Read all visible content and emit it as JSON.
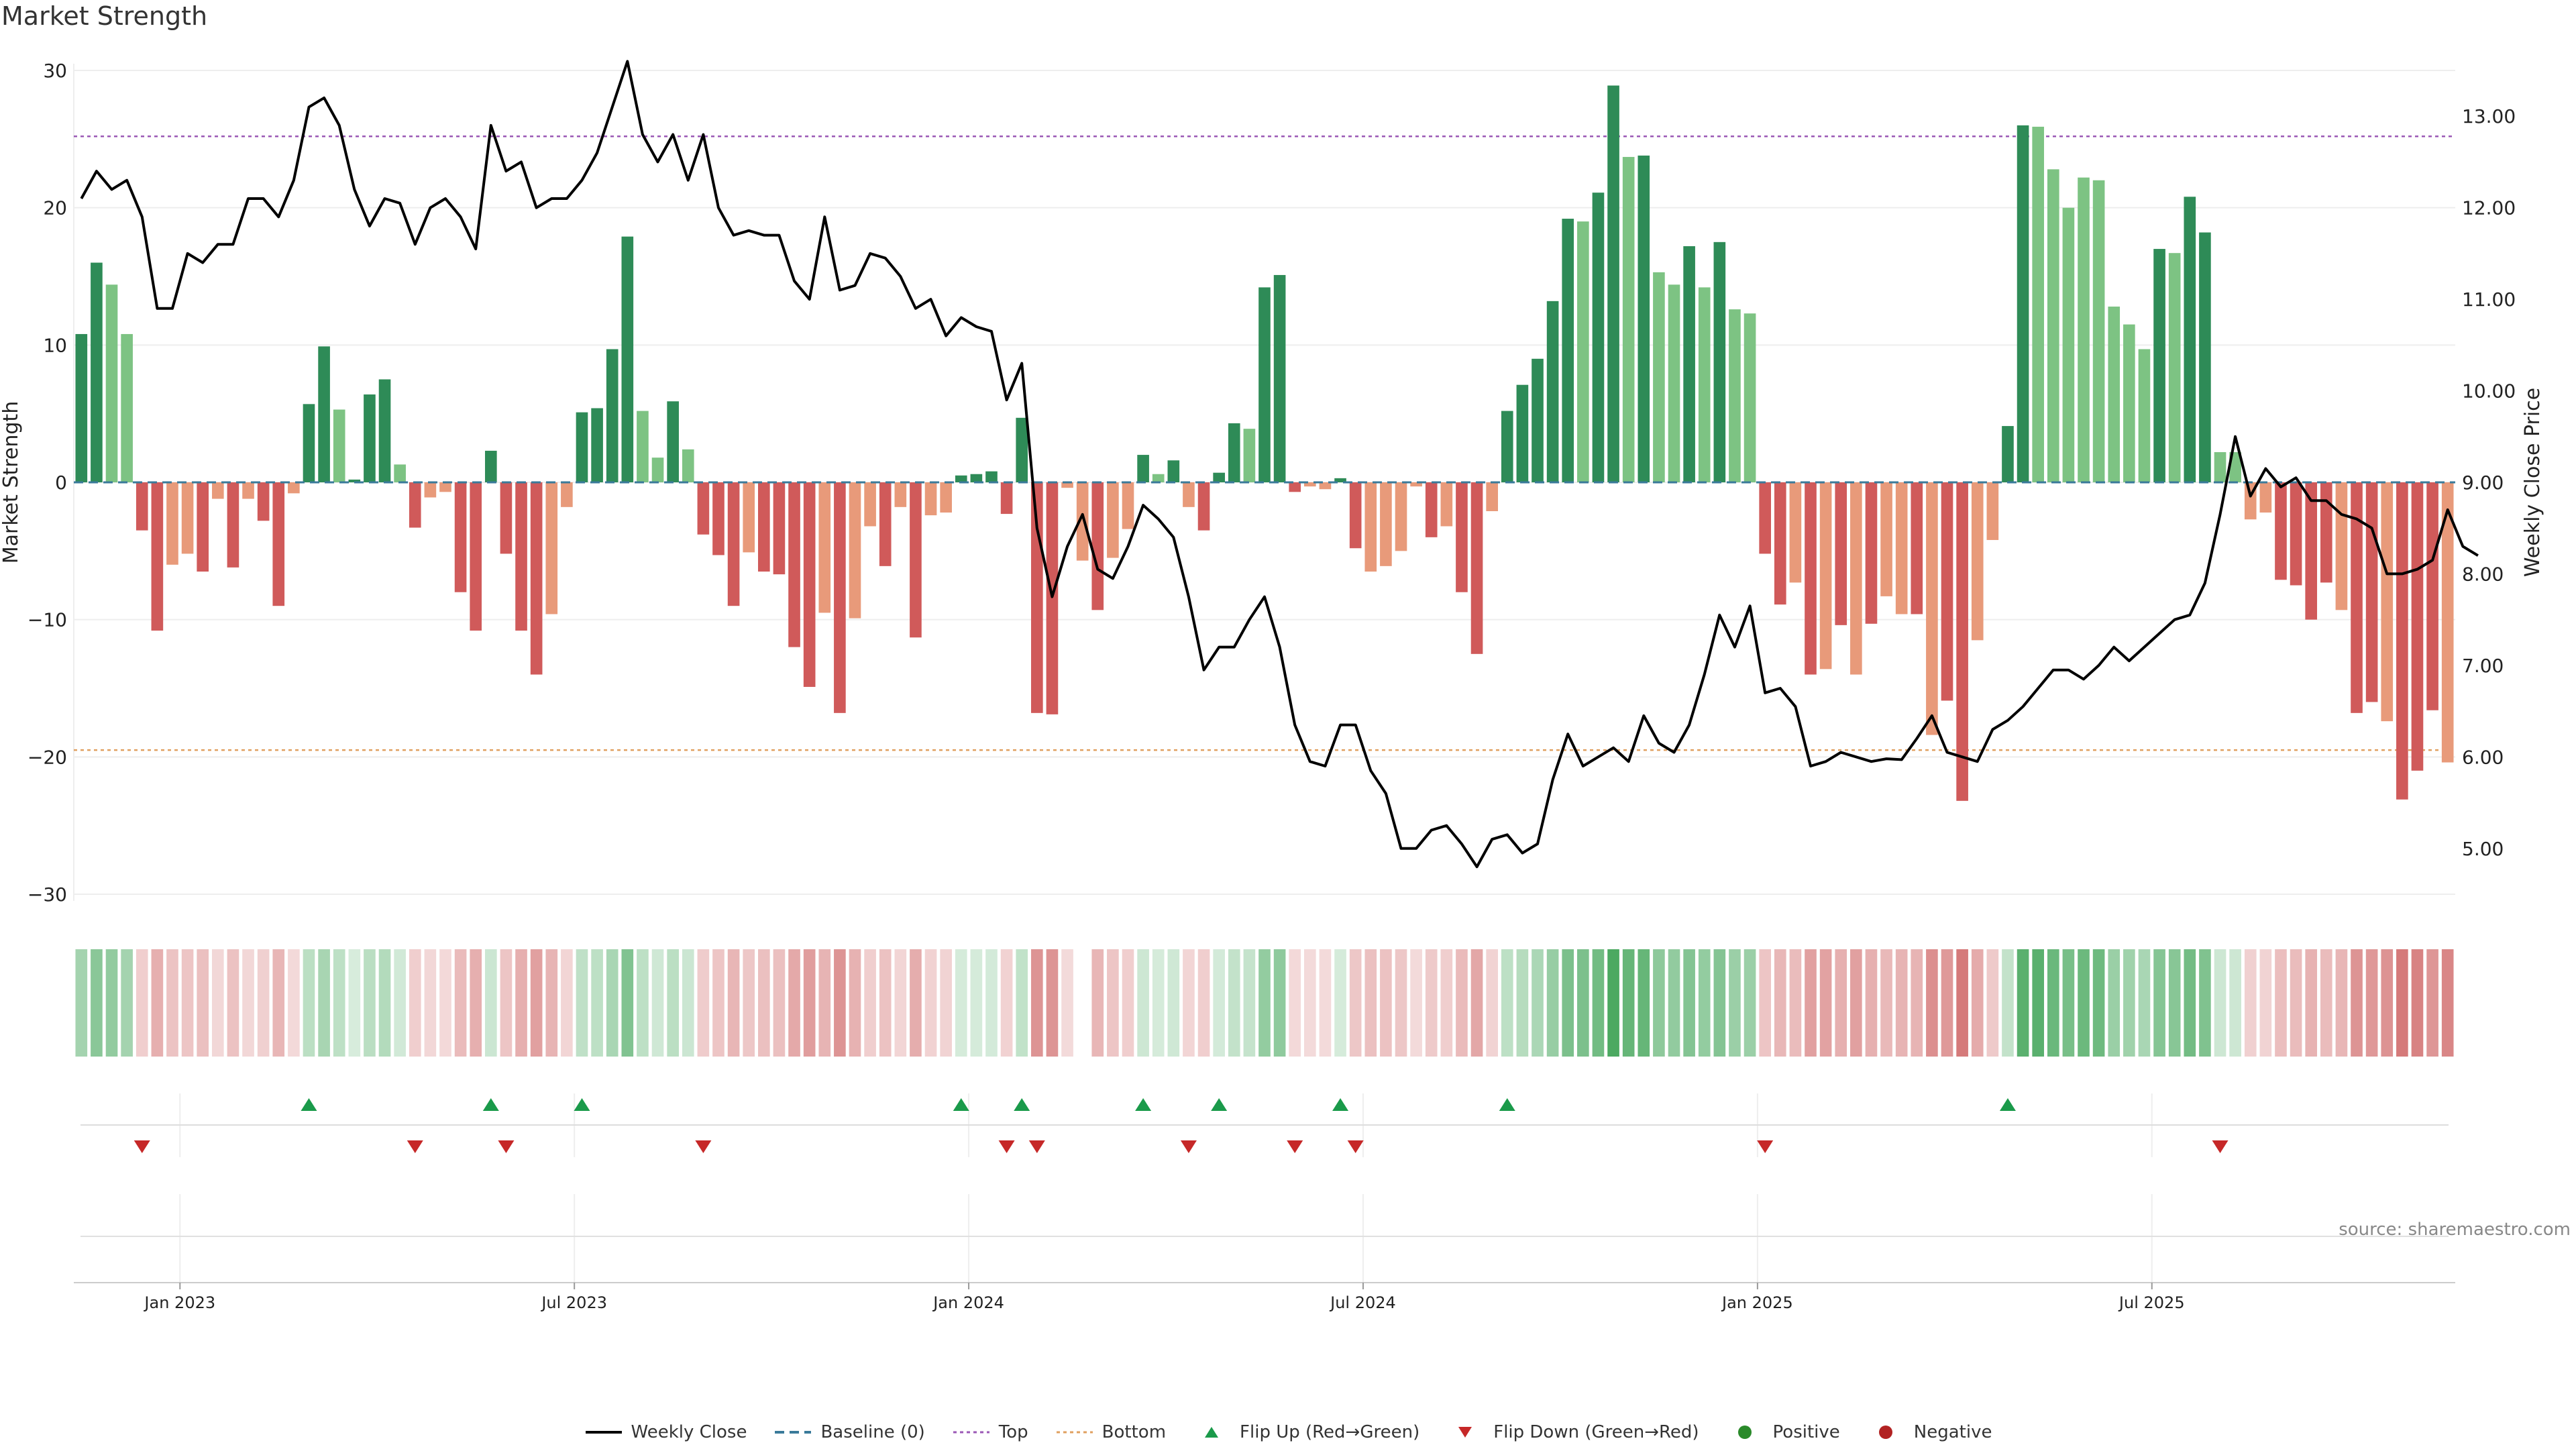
{
  "title": "Market Strength",
  "source": "source: sharemaestro.com",
  "colors": {
    "posDark": "#2e8b57",
    "posLight": "#7dc383",
    "negDark": "#d05a5a",
    "negLight": "#e89a7a",
    "topLine": "#9b59b6",
    "bottomLine": "#e0a060",
    "baseline": "#3a7a9a",
    "flipUp": "#1a9a4a",
    "flipDown": "#c62828",
    "price": "#000000"
  },
  "chart_data": {
    "type": "bar",
    "ylabel": "Market Strength",
    "y2label": "Weekly Close Price",
    "ylim": [
      -30,
      30
    ],
    "y2lim": [
      4.5,
      13.5
    ],
    "yticks": [
      30,
      20,
      10,
      0,
      -10,
      -20,
      -30
    ],
    "ytick_labels": [
      "30",
      "20",
      "10",
      "0",
      "−10",
      "−20",
      "−30"
    ],
    "y2ticks": [
      "13.00",
      "12.00",
      "11.00",
      "10.00",
      "9.00",
      "8.00",
      "7.00",
      "6.00",
      "5.00"
    ],
    "x_ticks": [
      {
        "label": "Jan 2023",
        "index": 7
      },
      {
        "label": "Jul 2023",
        "index": 33
      },
      {
        "label": "Jan 2024",
        "index": 59
      },
      {
        "label": "Jul 2024",
        "index": 85
      },
      {
        "label": "Jan 2025",
        "index": 111
      },
      {
        "label": "Jul 2025",
        "index": 137
      }
    ],
    "top_threshold": 25.2,
    "bottom_threshold": -19.5,
    "strength": [
      10.8,
      16,
      14.4,
      10.8,
      -3.5,
      -10.8,
      -6,
      -5.2,
      -6.5,
      -1.2,
      -6.2,
      -1.2,
      -2.8,
      -9,
      -0.8,
      5.7,
      9.9,
      5.3,
      0.2,
      6.4,
      7.5,
      1.3,
      -3.3,
      -1.1,
      -0.7,
      -8,
      -10.8,
      2.3,
      -5.2,
      -10.8,
      -14,
      -9.6,
      -1.8,
      5.1,
      5.4,
      9.7,
      17.9,
      5.2,
      1.8,
      5.9,
      2.4,
      -3.8,
      -5.3,
      -9,
      -5.1,
      -6.5,
      -6.7,
      -12,
      -14.9,
      -9.5,
      -16.8,
      -9.9,
      -3.2,
      -6.1,
      -1.8,
      -11.3,
      -2.4,
      -2.2,
      0.5,
      0.6,
      0.8,
      -2.3,
      4.7,
      -16.8,
      -16.9,
      -0.4,
      -5.7,
      -9.3,
      -5.5,
      -3.4,
      2,
      0.6,
      1.6,
      -1.8,
      -3.5,
      0.7,
      4.3,
      3.9,
      14.2,
      15.1,
      -0.7,
      -0.3,
      -0.5,
      0.3,
      -4.8,
      -6.5,
      -6.1,
      -5,
      -0.3,
      -4,
      -3.2,
      -8,
      -12.5,
      -2.1,
      5.2,
      7.1,
      9,
      13.2,
      19.2,
      19,
      21.1,
      28.9,
      23.7,
      23.8,
      15.3,
      14.4,
      17.2,
      14.2,
      17.5,
      12.6,
      12.3,
      -5.2,
      -8.9,
      -7.3,
      -14,
      -13.6,
      -10.4,
      -14,
      -10.3,
      -8.3,
      -9.6,
      -9.6,
      -18.4,
      -15.9,
      -23.2,
      -11.5,
      -4.2,
      4.1,
      26,
      25.9,
      22.8,
      20,
      22.2,
      22,
      12.8,
      11.5,
      9.7,
      17,
      16.7,
      20.8,
      18.2,
      2.2,
      2.2,
      -2.7,
      -2.2,
      -7.1,
      -7.5,
      -10,
      -7.3,
      -9.3,
      -16.8,
      -16,
      -17.4,
      -23.1,
      -21,
      -16.6,
      -20.4
    ],
    "shade": [
      0,
      0,
      1,
      1,
      0,
      0,
      1,
      1,
      0,
      1,
      0,
      1,
      0,
      0,
      1,
      0,
      0,
      1,
      0,
      0,
      0,
      1,
      0,
      1,
      1,
      0,
      0,
      0,
      0,
      0,
      0,
      1,
      1,
      0,
      0,
      0,
      0,
      1,
      1,
      0,
      1,
      0,
      0,
      0,
      1,
      0,
      0,
      0,
      0,
      1,
      0,
      1,
      1,
      0,
      1,
      0,
      1,
      1,
      0,
      0,
      0,
      0,
      0,
      0,
      0,
      1,
      1,
      0,
      1,
      1,
      0,
      1,
      0,
      1,
      0,
      0,
      0,
      1,
      0,
      0,
      0,
      1,
      1,
      0,
      0,
      1,
      1,
      1,
      1,
      0,
      1,
      0,
      0,
      1,
      0,
      0,
      0,
      0,
      0,
      1,
      0,
      0,
      1,
      0,
      1,
      1,
      0,
      1,
      0,
      1,
      1,
      0,
      0,
      1,
      0,
      1,
      0,
      1,
      0,
      1,
      1,
      0,
      1,
      0,
      0,
      1,
      1,
      0,
      0,
      1,
      1,
      1,
      1,
      1,
      1,
      1,
      1,
      0,
      1,
      0,
      0,
      1,
      1,
      1,
      1,
      0,
      0,
      0,
      0,
      1,
      0,
      0,
      1,
      0,
      0,
      0,
      1,
      1,
      0
    ],
    "price": [
      12.1,
      12.4,
      12.2,
      12.3,
      11.9,
      10.9,
      10.9,
      11.5,
      11.4,
      11.6,
      11.6,
      12.1,
      12.1,
      11.9,
      12.3,
      13.1,
      13.2,
      12.9,
      12.2,
      11.8,
      12.1,
      12.05,
      11.6,
      12.0,
      12.1,
      11.9,
      11.55,
      12.9,
      12.4,
      12.5,
      12.0,
      12.1,
      12.1,
      12.3,
      12.6,
      13.1,
      13.6,
      12.8,
      12.5,
      12.8,
      12.3,
      12.8,
      12.0,
      11.7,
      11.75,
      11.7,
      11.7,
      11.2,
      11.0,
      11.9,
      11.1,
      11.15,
      11.5,
      11.45,
      11.25,
      10.9,
      11.0,
      10.6,
      10.8,
      10.7,
      10.65,
      9.9,
      10.3,
      8.5,
      7.75,
      8.3,
      8.65,
      8.05,
      7.95,
      8.3,
      8.75,
      8.6,
      8.4,
      7.75,
      6.95,
      7.2,
      7.2,
      7.5,
      7.75,
      7.2,
      6.35,
      5.95,
      5.9,
      6.35,
      6.35,
      5.85,
      5.6,
      5.0,
      5.0,
      5.2,
      5.25,
      5.05,
      4.8,
      5.1,
      5.15,
      4.95,
      5.05,
      5.75,
      6.25,
      5.9,
      6.0,
      6.1,
      5.95,
      6.45,
      6.15,
      6.05,
      6.35,
      6.9,
      7.55,
      7.2,
      7.65,
      6.7,
      6.75,
      6.55,
      5.9,
      5.95,
      6.05,
      6.0,
      5.95,
      5.98,
      5.97,
      6.2,
      6.45,
      6.05,
      6.0,
      5.95,
      6.3,
      6.4,
      6.55,
      6.75,
      6.95,
      6.95,
      6.85,
      7.0,
      7.2,
      7.05,
      7.2,
      7.35,
      7.5,
      7.55,
      7.9,
      8.65,
      9.5,
      8.85,
      9.15,
      8.95,
      9.05,
      8.8,
      8.8,
      8.65,
      8.6,
      8.5,
      8.0,
      8.0,
      8.05,
      8.15,
      8.7,
      8.3,
      8.2
    ],
    "flip_up": [
      15,
      27,
      33,
      58,
      62,
      70,
      75,
      83,
      94,
      127
    ],
    "flip_down": [
      4,
      22,
      28,
      41,
      61,
      63,
      73,
      80,
      84,
      111,
      141
    ],
    "heat_gap": [
      66
    ],
    "legend": [
      {
        "label": "Weekly Close",
        "kind": "line"
      },
      {
        "label": "Baseline (0)",
        "kind": "dash"
      },
      {
        "label": "Top",
        "kind": "dotted-top"
      },
      {
        "label": "Bottom",
        "kind": "dotted-bottom"
      },
      {
        "label": "Flip Up (Red→Green)",
        "kind": "tri-up"
      },
      {
        "label": "Flip Down (Green→Red)",
        "kind": "tri-down"
      },
      {
        "label": "Positive",
        "kind": "dot-pos"
      },
      {
        "label": "Negative",
        "kind": "dot-neg"
      }
    ]
  }
}
